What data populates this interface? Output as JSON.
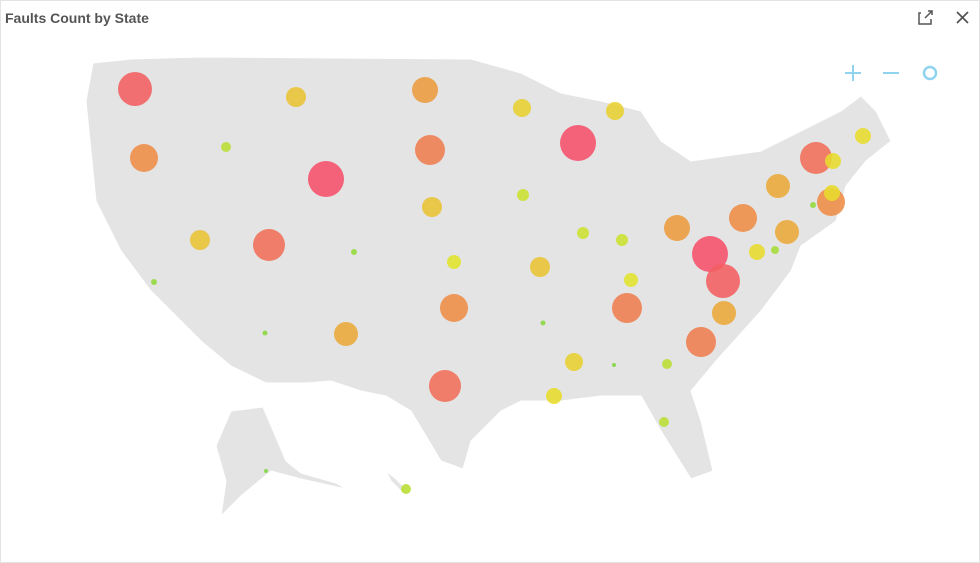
{
  "title": "Faults Count by State",
  "markers": {
    "values": [
      34,
      28,
      10,
      20,
      36,
      20,
      32,
      6,
      6,
      5,
      24,
      26,
      30,
      20,
      14,
      28,
      32,
      18,
      12,
      36,
      18,
      12,
      20,
      5,
      12,
      14,
      30,
      26,
      36,
      34,
      28,
      24,
      30,
      24,
      24,
      16,
      8,
      32,
      16,
      6,
      28,
      16,
      16,
      18,
      4,
      10,
      16,
      10,
      4,
      10
    ]
  }
}
